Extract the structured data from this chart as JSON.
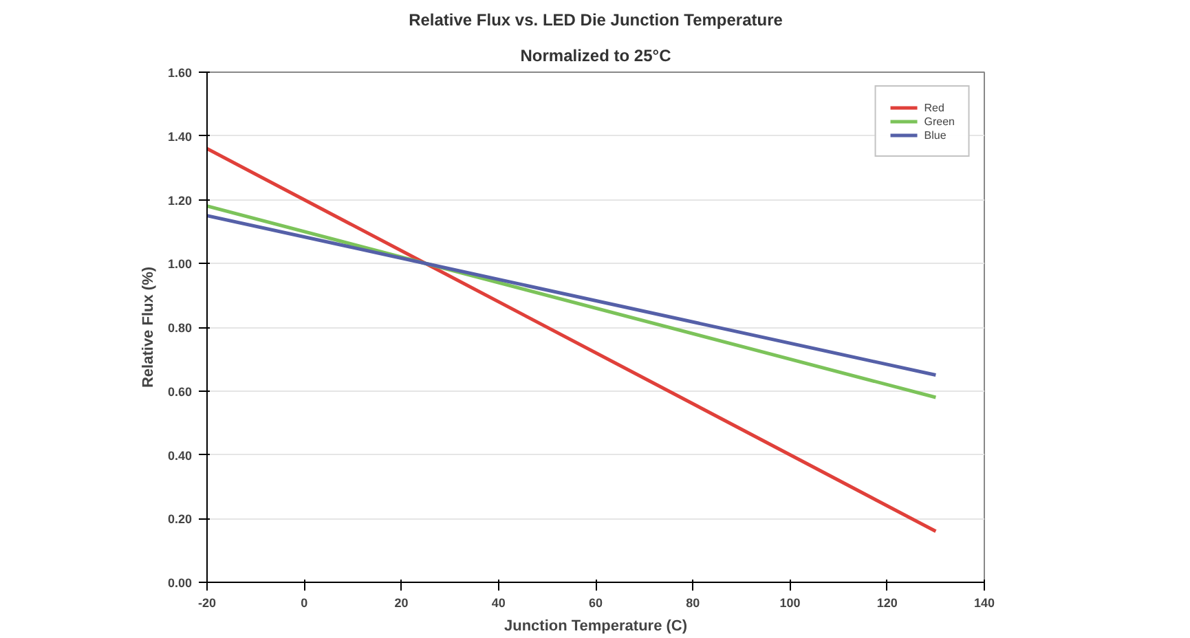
{
  "chart_data": {
    "type": "line",
    "title": "Relative Flux vs. LED Die Junction Temperature",
    "subtitle": "Normalized to 25°C",
    "xlabel": "Junction Temperature (C)",
    "ylabel": "Relative Flux (%)",
    "x": [
      -20,
      25,
      130
    ],
    "series": [
      {
        "name": "Red",
        "color": "#e0403a",
        "values": [
          1.36,
          1.0,
          0.16
        ]
      },
      {
        "name": "Green",
        "color": "#7cc35a",
        "values": [
          1.18,
          1.0,
          0.58
        ]
      },
      {
        "name": "Blue",
        "color": "#5560a8",
        "values": [
          1.15,
          1.0,
          0.65
        ]
      }
    ],
    "xlim": [
      -20,
      140
    ],
    "xticks": [
      -20,
      0,
      20,
      40,
      60,
      80,
      100,
      120,
      140
    ],
    "ylim": [
      0,
      1.6
    ],
    "yticks": [
      {
        "value": 0,
        "label": "0.00"
      },
      {
        "value": 0.2,
        "label": "0.20"
      },
      {
        "value": 0.4,
        "label": "0.40"
      },
      {
        "value": 0.6,
        "label": "0.60"
      },
      {
        "value": 0.8,
        "label": "0.80"
      },
      {
        "value": 1.0,
        "label": "1.00"
      },
      {
        "value": 1.2,
        "label": "1.20"
      },
      {
        "value": 1.4,
        "label": "1.40"
      },
      {
        "value": 1.6,
        "label": "1.60"
      }
    ],
    "grid": "y",
    "legend": "top right",
    "marker": "none",
    "line_style": "solid"
  }
}
